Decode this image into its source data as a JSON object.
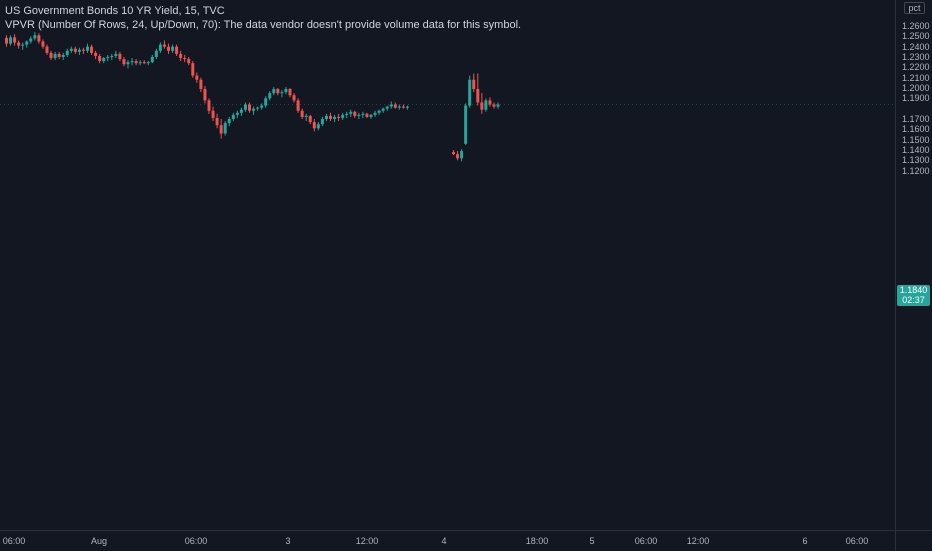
{
  "legend": {
    "symbol_line": "US Government Bonds 10 YR Yield, 15, TVC",
    "indicator_line": "VPVR (Number Of Rows, 24, Up/Down, 70): The data vendor doesn't provide volume data for this symbol."
  },
  "price_axis": {
    "unit": "pct",
    "ticks": [
      "1.2600",
      "1.2500",
      "1.2400",
      "1.2300",
      "1.2200",
      "1.2100",
      "1.2000",
      "1.1900",
      "1.1700",
      "1.1600",
      "1.1500",
      "1.1400",
      "1.1300",
      "1.1200"
    ]
  },
  "time_axis": {
    "ticks": [
      "06:00",
      "Aug",
      "06:00",
      "3",
      "12:00",
      "4",
      "18:00",
      "5",
      "06:00",
      "12:00",
      "6",
      "06:00"
    ]
  },
  "last_price": {
    "value": "1.1840",
    "countdown": "02:37"
  },
  "colors": {
    "up": "#26a69a",
    "down": "#ef5350",
    "background": "#131722",
    "axis_text": "#b2b5be"
  },
  "chart_data": {
    "type": "candlestick",
    "title": "US Government Bonds 10 YR Yield, 15, TVC",
    "xlabel": "",
    "ylabel": "",
    "ylim": [
      1.118,
      1.265
    ],
    "y_ticks": [
      1.26,
      1.25,
      1.24,
      1.23,
      1.22,
      1.21,
      1.2,
      1.19,
      1.17,
      1.16,
      1.15,
      1.14,
      1.13,
      1.12
    ],
    "x_ticks": [
      "06:00",
      "Aug",
      "06:00",
      "3",
      "12:00",
      "4",
      "18:00",
      "5",
      "06:00",
      "12:00",
      "6",
      "06:00"
    ],
    "grid": false,
    "last_value": 1.184,
    "candles": [
      [
        1.2485,
        1.251,
        1.24,
        1.243
      ],
      [
        1.243,
        1.251,
        1.241,
        1.249
      ],
      [
        1.249,
        1.252,
        1.241,
        1.244
      ],
      [
        1.244,
        1.246,
        1.238,
        1.241
      ],
      [
        1.241,
        1.244,
        1.237,
        1.242
      ],
      [
        1.242,
        1.246,
        1.239,
        1.245
      ],
      [
        1.245,
        1.25,
        1.243,
        1.248
      ],
      [
        1.248,
        1.254,
        1.246,
        1.251
      ],
      [
        1.251,
        1.253,
        1.243,
        1.245
      ],
      [
        1.245,
        1.247,
        1.238,
        1.24
      ],
      [
        1.24,
        1.242,
        1.232,
        1.234
      ],
      [
        1.234,
        1.236,
        1.227,
        1.229
      ],
      [
        1.229,
        1.235,
        1.227,
        1.233
      ],
      [
        1.233,
        1.235,
        1.228,
        1.23
      ],
      [
        1.23,
        1.234,
        1.227,
        1.232
      ],
      [
        1.232,
        1.238,
        1.23,
        1.236
      ],
      [
        1.236,
        1.24,
        1.234,
        1.238
      ],
      [
        1.238,
        1.24,
        1.233,
        1.235
      ],
      [
        1.235,
        1.239,
        1.232,
        1.237
      ],
      [
        1.237,
        1.239,
        1.233,
        1.236
      ],
      [
        1.236,
        1.243,
        1.234,
        1.24
      ],
      [
        1.24,
        1.242,
        1.232,
        1.234
      ],
      [
        1.234,
        1.236,
        1.228,
        1.231
      ],
      [
        1.231,
        1.233,
        1.224,
        1.226
      ],
      [
        1.226,
        1.23,
        1.224,
        1.229
      ],
      [
        1.229,
        1.232,
        1.226,
        1.23
      ],
      [
        1.23,
        1.233,
        1.227,
        1.231
      ],
      [
        1.231,
        1.236,
        1.229,
        1.233
      ],
      [
        1.233,
        1.235,
        1.226,
        1.228
      ],
      [
        1.228,
        1.23,
        1.221,
        1.223
      ],
      [
        1.223,
        1.227,
        1.219,
        1.225
      ],
      [
        1.225,
        1.229,
        1.222,
        1.226
      ],
      [
        1.226,
        1.228,
        1.222,
        1.224
      ],
      [
        1.224,
        1.227,
        1.222,
        1.225
      ],
      [
        1.225,
        1.227,
        1.223,
        1.224
      ],
      [
        1.224,
        1.226,
        1.222,
        1.225
      ],
      [
        1.225,
        1.232,
        1.224,
        1.23
      ],
      [
        1.23,
        1.238,
        1.228,
        1.236
      ],
      [
        1.236,
        1.244,
        1.234,
        1.242
      ],
      [
        1.242,
        1.246,
        1.238,
        1.24
      ],
      [
        1.24,
        1.243,
        1.233,
        1.236
      ],
      [
        1.236,
        1.242,
        1.234,
        1.24
      ],
      [
        1.24,
        1.242,
        1.231,
        1.233
      ],
      [
        1.233,
        1.236,
        1.226,
        1.229
      ],
      [
        1.229,
        1.232,
        1.225,
        1.228
      ],
      [
        1.228,
        1.23,
        1.222,
        1.224
      ],
      [
        1.224,
        1.226,
        1.21,
        1.212
      ],
      [
        1.212,
        1.215,
        1.205,
        1.208
      ],
      [
        1.208,
        1.21,
        1.196,
        1.199
      ],
      [
        1.199,
        1.202,
        1.185,
        1.188
      ],
      [
        1.188,
        1.19,
        1.175,
        1.178
      ],
      [
        1.178,
        1.182,
        1.168,
        1.171
      ],
      [
        1.171,
        1.175,
        1.161,
        1.164
      ],
      [
        1.164,
        1.17,
        1.151,
        1.156
      ],
      [
        1.156,
        1.168,
        1.154,
        1.166
      ],
      [
        1.166,
        1.172,
        1.163,
        1.17
      ],
      [
        1.17,
        1.176,
        1.168,
        1.174
      ],
      [
        1.174,
        1.178,
        1.171,
        1.176
      ],
      [
        1.176,
        1.181,
        1.173,
        1.179
      ],
      [
        1.179,
        1.186,
        1.177,
        1.184
      ],
      [
        1.184,
        1.186,
        1.176,
        1.178
      ],
      [
        1.178,
        1.182,
        1.174,
        1.18
      ],
      [
        1.18,
        1.182,
        1.178,
        1.181
      ],
      [
        1.181,
        1.185,
        1.179,
        1.183
      ],
      [
        1.183,
        1.192,
        1.181,
        1.19
      ],
      [
        1.19,
        1.197,
        1.188,
        1.195
      ],
      [
        1.195,
        1.201,
        1.193,
        1.199
      ],
      [
        1.199,
        1.2,
        1.193,
        1.195
      ],
      [
        1.195,
        1.198,
        1.191,
        1.196
      ],
      [
        1.196,
        1.201,
        1.194,
        1.199
      ],
      [
        1.199,
        1.2,
        1.191,
        1.193
      ],
      [
        1.193,
        1.195,
        1.186,
        1.188
      ],
      [
        1.188,
        1.19,
        1.176,
        1.178
      ],
      [
        1.178,
        1.18,
        1.17,
        1.172
      ],
      [
        1.172,
        1.175,
        1.168,
        1.173
      ],
      [
        1.173,
        1.174,
        1.165,
        1.167
      ],
      [
        1.167,
        1.17,
        1.158,
        1.161
      ],
      [
        1.161,
        1.167,
        1.159,
        1.165
      ],
      [
        1.165,
        1.172,
        1.163,
        1.17
      ],
      [
        1.17,
        1.175,
        1.168,
        1.173
      ],
      [
        1.173,
        1.176,
        1.168,
        1.17
      ],
      [
        1.17,
        1.174,
        1.167,
        1.172
      ],
      [
        1.172,
        1.175,
        1.168,
        1.171
      ],
      [
        1.171,
        1.176,
        1.169,
        1.174
      ],
      [
        1.174,
        1.177,
        1.171,
        1.175
      ],
      [
        1.175,
        1.179,
        1.172,
        1.177
      ],
      [
        1.177,
        1.178,
        1.171,
        1.173
      ],
      [
        1.173,
        1.176,
        1.17,
        1.174
      ],
      [
        1.174,
        1.177,
        1.171,
        1.175
      ],
      [
        1.175,
        1.176,
        1.171,
        1.172
      ],
      [
        1.172,
        1.175,
        1.17,
        1.174
      ],
      [
        1.174,
        1.178,
        1.172,
        1.176
      ],
      [
        1.176,
        1.179,
        1.174,
        1.178
      ],
      [
        1.178,
        1.181,
        1.176,
        1.18
      ],
      [
        1.18,
        1.183,
        1.178,
        1.182
      ],
      [
        1.182,
        1.187,
        1.18,
        1.184
      ],
      [
        1.184,
        1.186,
        1.18,
        1.181
      ],
      [
        1.181,
        1.184,
        1.179,
        1.182
      ],
      [
        1.182,
        1.184,
        1.18,
        1.181
      ],
      [
        1.181,
        1.183,
        1.179,
        1.182
      ],
      [
        1.138,
        1.14,
        1.135,
        1.136
      ],
      [
        1.136,
        1.139,
        1.13,
        1.132
      ],
      [
        1.132,
        1.141,
        1.129,
        1.139
      ],
      [
        1.146,
        1.185,
        1.145,
        1.183
      ],
      [
        1.183,
        1.212,
        1.181,
        1.208
      ],
      [
        1.208,
        1.214,
        1.196,
        1.199
      ],
      [
        1.199,
        1.214,
        1.183,
        1.186
      ],
      [
        1.186,
        1.195,
        1.175,
        1.179
      ],
      [
        1.179,
        1.19,
        1.177,
        1.188
      ],
      [
        1.188,
        1.191,
        1.182,
        1.184
      ],
      [
        1.184,
        1.186,
        1.18,
        1.182
      ],
      [
        1.182,
        1.186,
        1.18,
        1.184
      ]
    ]
  }
}
